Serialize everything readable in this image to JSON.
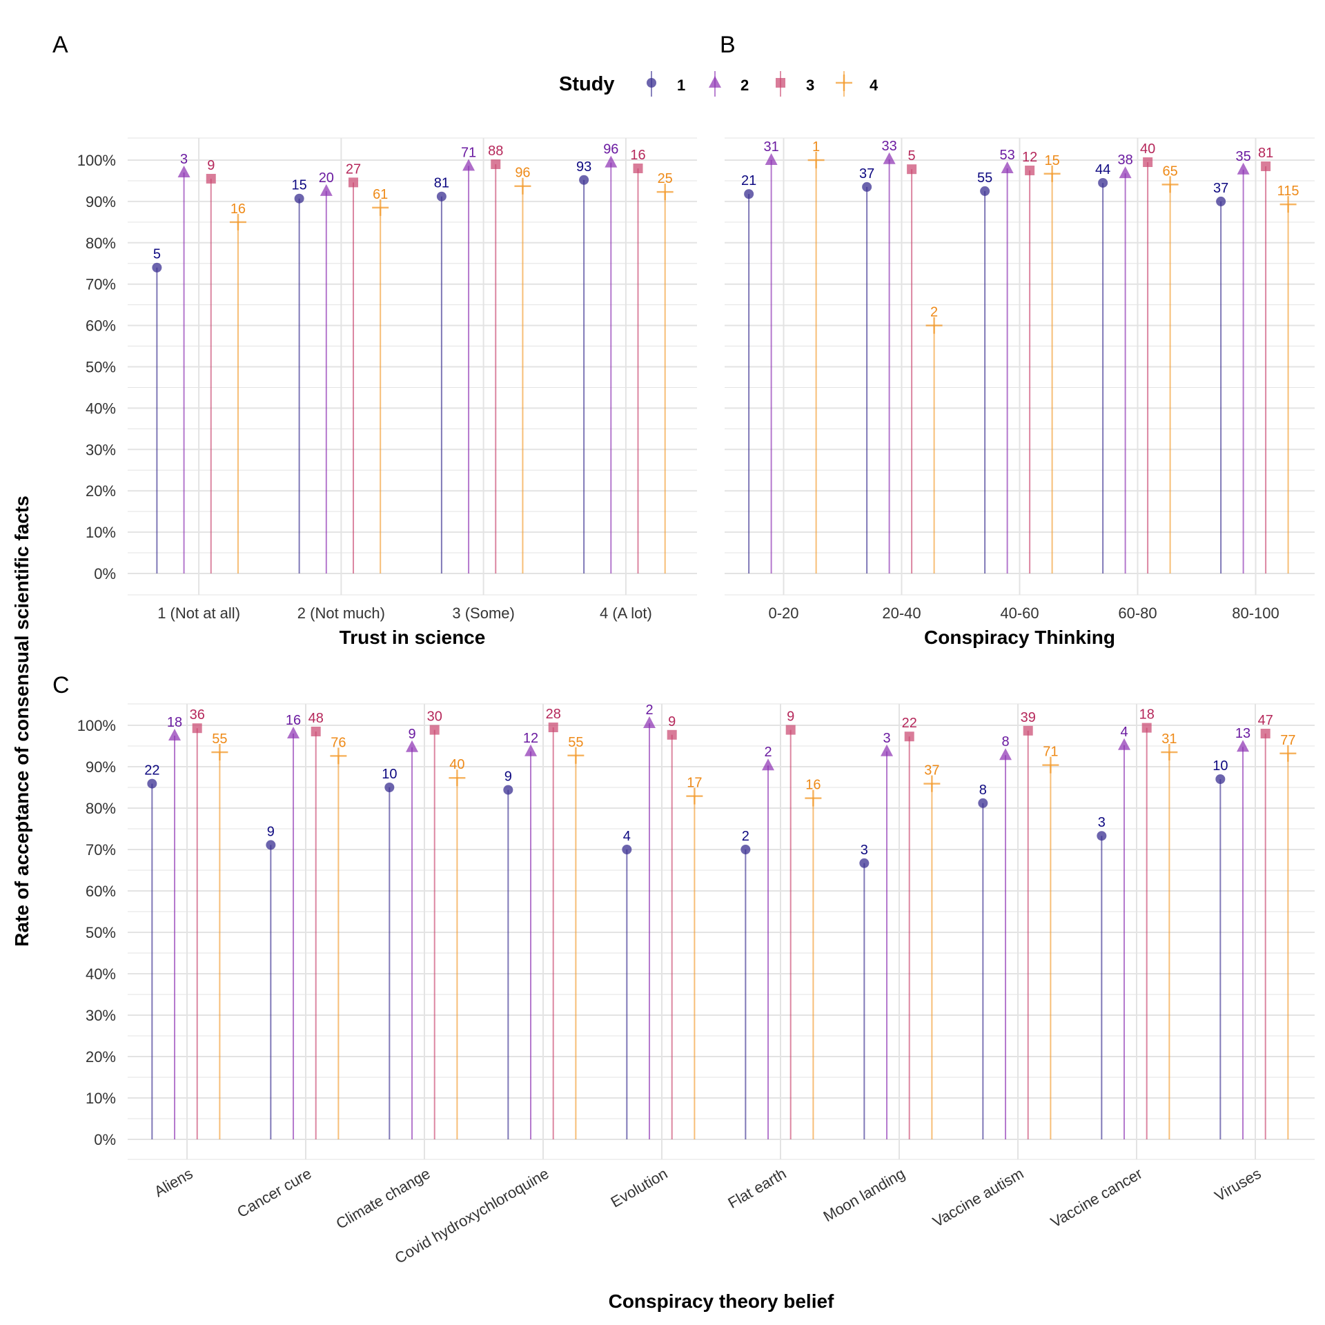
{
  "figure": {
    "y_axis_label": "Rate of acceptance of consensual scientific facts",
    "colors": {
      "study1": "#3b3091",
      "study2": "#8c2fb2",
      "study3": "#c9456e",
      "study4": "#f39b2e",
      "grid": "#e3e3e3",
      "label1": "#0d0880",
      "label2": "#6a1aa0",
      "label3": "#b5275a",
      "label4": "#ee8a18"
    }
  },
  "legend": {
    "title": "Study",
    "entries": [
      {
        "label": "1",
        "shape": "circle"
      },
      {
        "label": "2",
        "shape": "triangle"
      },
      {
        "label": "3",
        "shape": "square"
      },
      {
        "label": "4",
        "shape": "cross"
      }
    ]
  },
  "chart_data": [
    {
      "panel": "A",
      "type": "lollipop",
      "xlabel": "Trust in science",
      "ylabel": "Rate of acceptance of consensual scientific facts",
      "ylim": [
        0,
        100
      ],
      "y_unit": "%",
      "y_ticks": [
        0,
        10,
        20,
        30,
        40,
        50,
        60,
        70,
        80,
        90,
        100
      ],
      "grid": true,
      "categories": [
        "1 (Not at all)",
        "2 (Not much)",
        "3 (Some)",
        "4 (A lot)"
      ],
      "series": [
        {
          "name": "1",
          "values": [
            74,
            90.7,
            91.2,
            95.2
          ],
          "labels": [
            "5",
            "15",
            "81",
            "93"
          ]
        },
        {
          "name": "2",
          "values": [
            97,
            92.5,
            98.6,
            99.4
          ],
          "labels": [
            "3",
            "20",
            "71",
            "96"
          ]
        },
        {
          "name": "3",
          "values": [
            95.5,
            94.6,
            99,
            98
          ],
          "labels": [
            "9",
            "27",
            "88",
            "16"
          ]
        },
        {
          "name": "4",
          "values": [
            85,
            88.5,
            93.7,
            92.3
          ],
          "labels": [
            "16",
            "61",
            "96",
            "25"
          ]
        }
      ]
    },
    {
      "panel": "B",
      "type": "lollipop",
      "xlabel": "Conspiracy Thinking",
      "ylim": [
        0,
        100
      ],
      "y_unit": "%",
      "grid": true,
      "categories": [
        "0-20",
        "20-40",
        "40-60",
        "60-80",
        "80-100"
      ],
      "series": [
        {
          "name": "1",
          "values": [
            91.8,
            93.5,
            92.5,
            94.5,
            90
          ],
          "labels": [
            "21",
            "37",
            "55",
            "44",
            "37"
          ]
        },
        {
          "name": "2",
          "values": [
            100,
            100.2,
            98,
            96.8,
            97.7
          ],
          "labels": [
            "31",
            "33",
            "53",
            "38",
            "35"
          ]
        },
        {
          "name": "3",
          "values": null,
          "values_list": [
            null,
            97.8,
            97.5,
            99.5,
            98.5
          ],
          "labels_list": [
            "",
            "5",
            "12",
            "40",
            "81"
          ]
        },
        {
          "name": "4",
          "values": [
            100,
            60,
            96.7,
            94.1,
            89.3
          ],
          "labels": [
            "1",
            "2",
            "15",
            "65",
            "115"
          ]
        }
      ]
    },
    {
      "panel": "C",
      "type": "lollipop",
      "xlabel": "Conspiracy theory belief",
      "ylim": [
        0,
        100
      ],
      "y_unit": "%",
      "grid": true,
      "categories": [
        "Aliens",
        "Cancer cure",
        "Climate change",
        "Covid hydroxychloroquine",
        "Evolution",
        "Flat earth",
        "Moon landing",
        "Vaccine autism",
        "Vaccine cancer",
        "Viruses"
      ],
      "series": [
        {
          "name": "1",
          "values": [
            85.9,
            71.1,
            85,
            84.4,
            70,
            70,
            66.7,
            81.2,
            73.3,
            87
          ],
          "labels": [
            "22",
            "9",
            "10",
            "9",
            "4",
            "2",
            "3",
            "8",
            "3",
            "10"
          ]
        },
        {
          "name": "2",
          "values": [
            97.5,
            98,
            94.7,
            93.7,
            100.5,
            90.3,
            93.7,
            92.8,
            95.2,
            94.8
          ],
          "labels": [
            "18",
            "16",
            "9",
            "12",
            "2",
            "2",
            "3",
            "8",
            "4",
            "13"
          ]
        },
        {
          "name": "3",
          "values": [
            99.3,
            98.5,
            98.9,
            99.5,
            97.7,
            98.9,
            97.3,
            98.7,
            99.4,
            98
          ],
          "labels": [
            "36",
            "48",
            "30",
            "28",
            "9",
            "9",
            "22",
            "39",
            "18",
            "47"
          ]
        },
        {
          "name": "4",
          "values": [
            93.5,
            92.6,
            87.3,
            92.7,
            82.9,
            82.4,
            85.9,
            90.4,
            93.5,
            93.2
          ],
          "labels": [
            "55",
            "76",
            "40",
            "55",
            "17",
            "16",
            "37",
            "71",
            "31",
            "77"
          ]
        }
      ]
    }
  ],
  "panel_tags": [
    "A",
    "B",
    "C"
  ]
}
